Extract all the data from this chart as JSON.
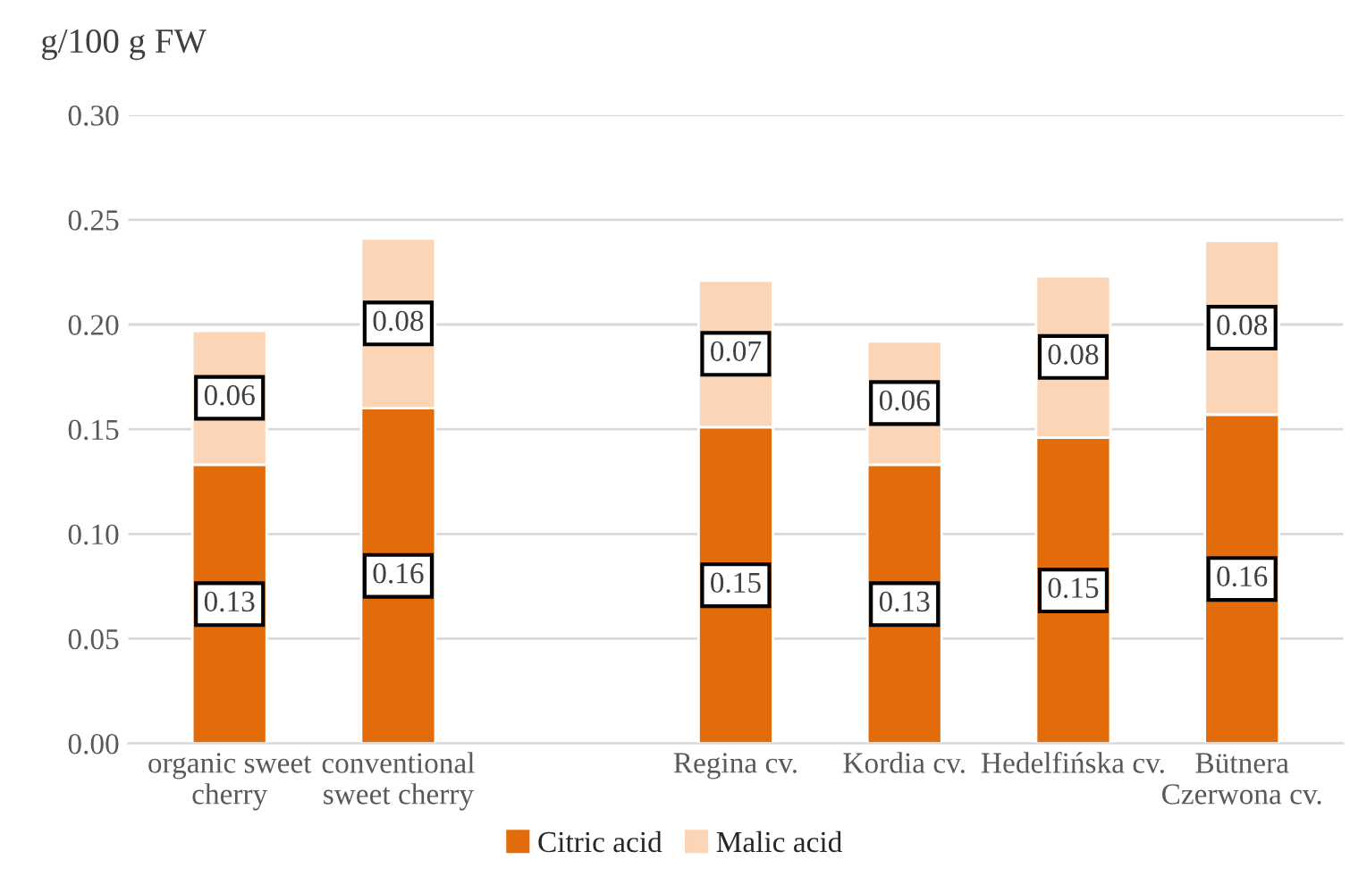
{
  "chart_data": {
    "type": "bar",
    "stacked": true,
    "ylabel": "g/100 g FW",
    "categories": [
      "organic sweet\ncherry",
      "conventional\nsweet cherry",
      null,
      "Regina cv.",
      "Kordia cv.",
      "Hedelfińska cv.",
      "Bütnera\nCzerwona cv."
    ],
    "series": [
      {
        "name": "Citric acid",
        "color": "#e36c0a",
        "values": [
          0.133,
          0.16,
          null,
          0.151,
          0.133,
          0.146,
          0.157
        ],
        "value_labels": [
          "0.13",
          "0.16",
          null,
          "0.15",
          "0.13",
          "0.15",
          "0.16"
        ]
      },
      {
        "name": "Malic acid",
        "color": "#fbd5b5",
        "values": [
          0.064,
          0.081,
          null,
          0.07,
          0.059,
          0.077,
          0.083
        ],
        "value_labels": [
          "0.06",
          "0.08",
          null,
          "0.07",
          "0.06",
          "0.08",
          "0.08"
        ]
      }
    ],
    "ylim": [
      0,
      0.3
    ],
    "yticks": [
      {
        "value": 0,
        "label": "0.00"
      },
      {
        "value": 0.05,
        "label": "0.05"
      },
      {
        "value": 0.1,
        "label": "0.10"
      },
      {
        "value": 0.15,
        "label": "0.15"
      },
      {
        "value": 0.2,
        "label": "0.20"
      },
      {
        "value": 0.25,
        "label": "0.25"
      },
      {
        "value": 0.3,
        "label": "0.30"
      }
    ],
    "grid": "y",
    "legend": "bottom"
  }
}
